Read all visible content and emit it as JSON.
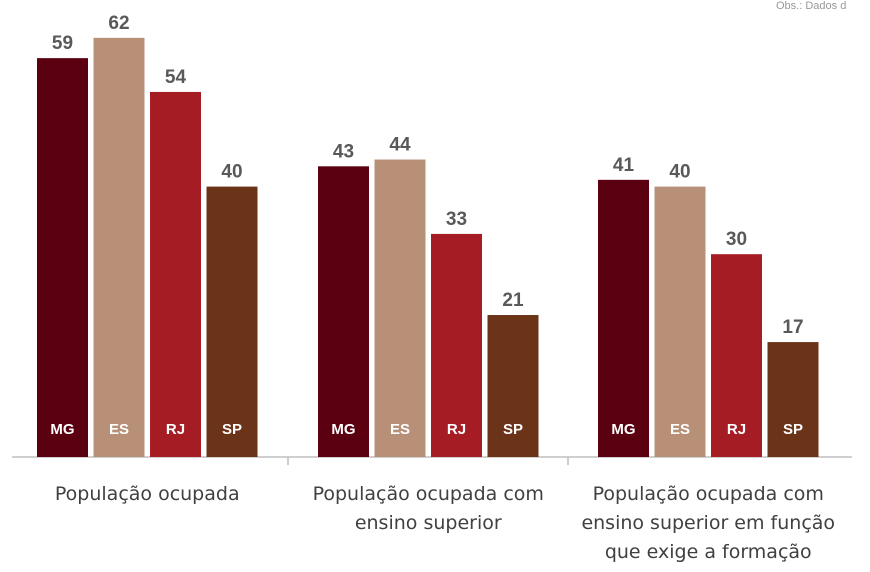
{
  "chart_data": {
    "type": "bar",
    "categories": [
      "População ocupada",
      "População ocupada com ensino superior",
      "População ocupada com ensino superior em função que exige a formação"
    ],
    "series": [
      {
        "name": "MG",
        "color": "#5a0010",
        "values": [
          59,
          43,
          41
        ]
      },
      {
        "name": "ES",
        "color": "#b89078",
        "values": [
          62,
          44,
          40
        ]
      },
      {
        "name": "RJ",
        "color": "#a51c24",
        "values": [
          54,
          33,
          30
        ]
      },
      {
        "name": "SP",
        "color": "#6b3318",
        "values": [
          40,
          21,
          17
        ]
      }
    ],
    "ylim": [
      0,
      67.6
    ],
    "annotation": "Obs.: Dados d"
  }
}
